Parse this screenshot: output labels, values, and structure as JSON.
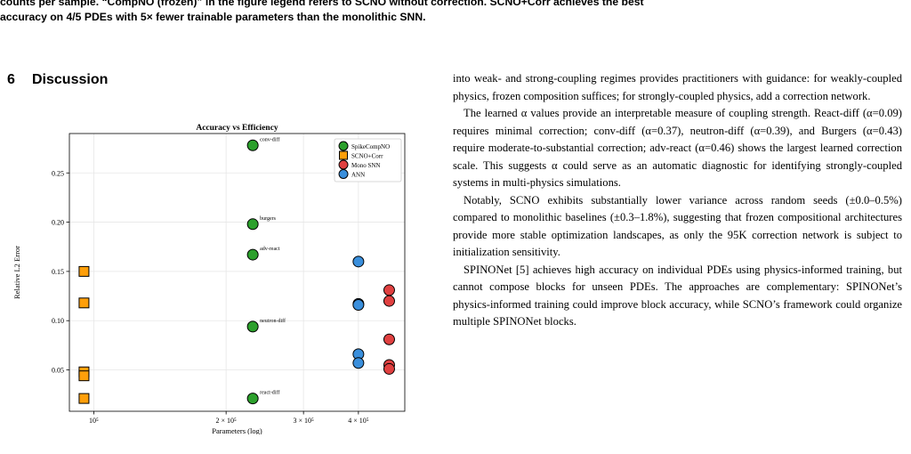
{
  "caption": {
    "line1": "ger samples, and per sample. “CompNO (frozen)” in the figure legend refers to SCNO without correction. SCNO+Corr achieves the best",
    "line1_display": "counts per sample. “CompNO (frozen)” in the figure legend refers to SCNO without correction. SCNO+Corr achieves the best",
    "line2": "accuracy on 4/5 PDEs with 5× fewer trainable parameters than the monolithic SNN."
  },
  "section": {
    "number": "6",
    "title": "Discussion"
  },
  "chart_data": {
    "type": "scatter",
    "title": "Accuracy vs Efficiency",
    "xlabel": "Parameters (log)",
    "ylabel": "Relative L2 Error",
    "x_scale": "log",
    "xlim": [
      88000,
      510000
    ],
    "ylim": [
      0.008,
      0.29
    ],
    "grid": true,
    "legend_position": "top-right",
    "x_ticks": [
      {
        "value": 100000,
        "label": "10⁵"
      },
      {
        "value": 200000,
        "label": "2 × 10⁵"
      },
      {
        "value": 300000,
        "label": "3 × 10⁵"
      },
      {
        "value": 400000,
        "label": "4 × 10⁵"
      }
    ],
    "y_ticks": [
      0.05,
      0.1,
      0.15,
      0.2,
      0.25
    ],
    "y_tick_labels": [
      "0.05",
      "0.10",
      "0.15",
      "0.20",
      "0.25"
    ],
    "series": [
      {
        "name": "SpikeCompNO",
        "marker": "circle",
        "color": "#2ca02c",
        "points": [
          {
            "x": 230000,
            "y": 0.278,
            "label": "conv-diff"
          },
          {
            "x": 230000,
            "y": 0.198,
            "label": "burgers"
          },
          {
            "x": 230000,
            "y": 0.167,
            "label": "adv-react"
          },
          {
            "x": 230000,
            "y": 0.094,
            "label": "neutron-diff"
          },
          {
            "x": 230000,
            "y": 0.021,
            "label": "react-diff"
          }
        ]
      },
      {
        "name": "SCNO+Corr",
        "marker": "square",
        "color": "#ff9f0a",
        "points": [
          {
            "x": 95000,
            "y": 0.15
          },
          {
            "x": 95000,
            "y": 0.118
          },
          {
            "x": 95000,
            "y": 0.048
          },
          {
            "x": 95000,
            "y": 0.044
          },
          {
            "x": 95000,
            "y": 0.021
          }
        ]
      },
      {
        "name": "Mono SNN",
        "marker": "circle",
        "color": "#e04040",
        "points": [
          {
            "x": 470000,
            "y": 0.131
          },
          {
            "x": 470000,
            "y": 0.12
          },
          {
            "x": 470000,
            "y": 0.081
          },
          {
            "x": 470000,
            "y": 0.055
          },
          {
            "x": 470000,
            "y": 0.051
          }
        ]
      },
      {
        "name": "ANN",
        "marker": "circle",
        "color": "#3a8fdc",
        "points": [
          {
            "x": 400000,
            "y": 0.16
          },
          {
            "x": 400000,
            "y": 0.117
          },
          {
            "x": 400000,
            "y": 0.116
          },
          {
            "x": 400000,
            "y": 0.066
          },
          {
            "x": 400000,
            "y": 0.057
          }
        ]
      }
    ]
  },
  "body": {
    "p1": "into weak- and strong-coupling regimes provides practitioners with guidance: for weakly-coupled physics, frozen composition suffices; for strongly-coupled physics, add a correction network.",
    "p2": "The learned α values provide an interpretable measure of coupling strength. React-diff (α=0.09) requires minimal correction; conv-diff (α=0.37), neutron-diff (α=0.39), and Burgers (α=0.43) require moderate-to-substantial correction; adv-react (α=0.46) shows the largest learned correction scale. This suggests α could serve as an automatic diagnostic for identifying strongly-coupled systems in multi-physics simulations.",
    "p3": "Notably, SCNO exhibits substantially lower variance across random seeds (±0.0–0.5%) compared to monolithic baselines (±0.3–1.8%), suggesting that frozen compositional architectures provide more stable optimization landscapes, as only the 95K correction network is subject to initialization sensitivity.",
    "p4": "SPINONet [5] achieves high accuracy on individual PDEs using physics-informed training, but cannot compose blocks for unseen PDEs. The approaches are complementary: SPINONet’s physics-informed training could improve block accuracy, while SCNO’s framework could organize multiple SPINONet blocks."
  }
}
